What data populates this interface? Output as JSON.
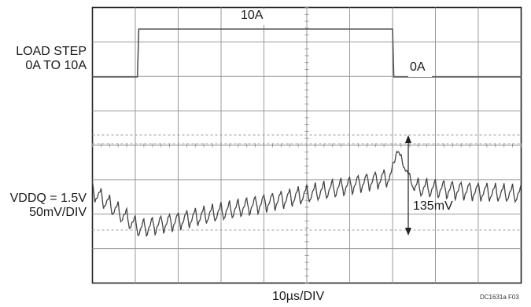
{
  "chart_data": {
    "type": "line",
    "x_axis_label": "10µs/DIV",
    "divisions": {
      "x": 10,
      "y": 8
    },
    "series": [
      {
        "label_lines": [
          "LOAD STEP",
          "0A TO 10A"
        ],
        "role": "load-current",
        "x_div": [
          0.0,
          1.05,
          1.08,
          7.0,
          7.03,
          10.0
        ],
        "current_A": [
          0,
          0,
          10,
          10,
          0,
          0
        ],
        "annotations": [
          {
            "text": "10A"
          },
          {
            "text": "0A"
          }
        ]
      },
      {
        "label_lines": [
          "VDDQ = 1.5V",
          "50mV/DIV"
        ],
        "role": "output-voltage",
        "ripple_period_div": 0.2,
        "mean_level_mV": [
          {
            "x_div": 0.0,
            "mV": 0
          },
          {
            "x_div": 1.1,
            "mV": -55
          },
          {
            "x_div": 6.95,
            "mV": 20
          },
          {
            "x_div": 7.1,
            "mV": 60
          },
          {
            "x_div": 7.5,
            "mV": 5
          },
          {
            "x_div": 10.0,
            "mV": -5
          }
        ],
        "transient_peak_to_peak": "135mV"
      }
    ],
    "dashed_reference_lines": 3,
    "footer_code": "DC1631a F03"
  }
}
